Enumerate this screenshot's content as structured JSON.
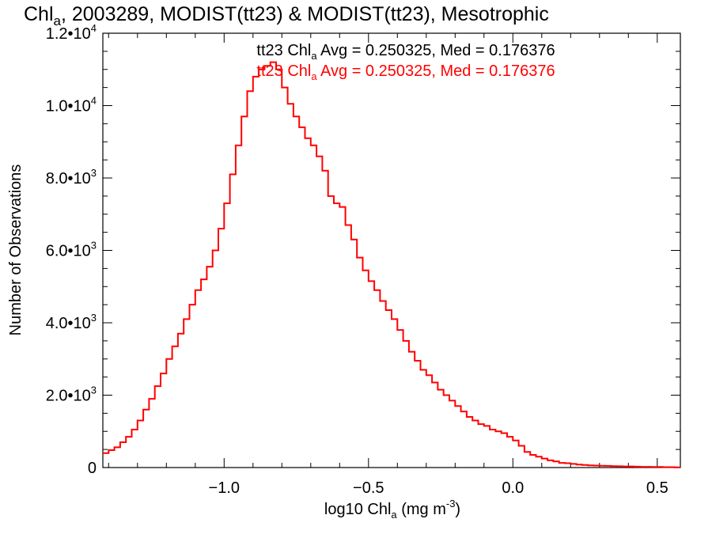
{
  "chart_data": {
    "type": "line",
    "title_parts": {
      "base": "Chl",
      "sub": "a",
      "rest": ", 2003289, MODIST(tt23) & MODIST(tt23), Mesotrophic"
    },
    "xlabel_parts": {
      "pre": "log10 Chl",
      "sub": "a",
      "mid": " (mg m",
      "sup": "-3",
      "post": ")"
    },
    "ylabel": "Number of Observations",
    "xlim": [
      -1.42,
      0.58
    ],
    "ylim": [
      0,
      12000
    ],
    "x_ticks": [
      {
        "value": -1.0,
        "label": "−1.0"
      },
      {
        "value": -0.5,
        "label": "−0.5"
      },
      {
        "value": 0.0,
        "label": "0.0"
      },
      {
        "value": 0.5,
        "label": "0.5"
      }
    ],
    "y_ticks": [
      {
        "value": 0,
        "label": "0",
        "exp": ""
      },
      {
        "value": 2000,
        "label": "2.0•10",
        "exp": "3"
      },
      {
        "value": 4000,
        "label": "4.0•10",
        "exp": "3"
      },
      {
        "value": 6000,
        "label": "6.0•10",
        "exp": "3"
      },
      {
        "value": 8000,
        "label": "8.0•10",
        "exp": "3"
      },
      {
        "value": 10000,
        "label": "1.0•10",
        "exp": "4"
      },
      {
        "value": 12000,
        "label": "1.2•10",
        "exp": "4"
      }
    ],
    "legend": [
      {
        "pre": "tt23 Chl",
        "sub": "a",
        "post": " Avg = 0.250325, Med = 0.176376",
        "color": "#000000"
      },
      {
        "pre": "tt23 Chl",
        "sub": "a",
        "post": " Avg = 0.250325, Med = 0.176376",
        "color": "#ff0000"
      }
    ],
    "series": [
      {
        "color": "#ff0000",
        "x": [
          -1.42,
          -1.4,
          -1.38,
          -1.36,
          -1.34,
          -1.32,
          -1.3,
          -1.28,
          -1.26,
          -1.24,
          -1.22,
          -1.2,
          -1.18,
          -1.16,
          -1.14,
          -1.12,
          -1.1,
          -1.08,
          -1.06,
          -1.04,
          -1.02,
          -1.0,
          -0.98,
          -0.96,
          -0.94,
          -0.92,
          -0.9,
          -0.88,
          -0.86,
          -0.84,
          -0.82,
          -0.8,
          -0.78,
          -0.76,
          -0.74,
          -0.72,
          -0.7,
          -0.68,
          -0.66,
          -0.64,
          -0.62,
          -0.6,
          -0.58,
          -0.56,
          -0.54,
          -0.52,
          -0.5,
          -0.48,
          -0.46,
          -0.44,
          -0.42,
          -0.4,
          -0.38,
          -0.36,
          -0.34,
          -0.32,
          -0.3,
          -0.28,
          -0.26,
          -0.24,
          -0.22,
          -0.2,
          -0.18,
          -0.16,
          -0.14,
          -0.12,
          -0.1,
          -0.08,
          -0.06,
          -0.04,
          -0.02,
          0.0,
          0.02,
          0.04,
          0.06,
          0.08,
          0.1,
          0.12,
          0.14,
          0.16,
          0.18,
          0.2,
          0.22,
          0.24,
          0.26,
          0.28,
          0.3,
          0.32,
          0.34,
          0.36,
          0.38,
          0.4,
          0.42,
          0.44,
          0.46,
          0.48,
          0.5,
          0.52,
          0.54,
          0.56,
          0.58
        ],
        "y": [
          400,
          480,
          560,
          700,
          850,
          1050,
          1300,
          1600,
          1900,
          2250,
          2600,
          3000,
          3350,
          3700,
          4100,
          4500,
          4900,
          5200,
          5550,
          6000,
          6600,
          7300,
          8100,
          8900,
          9700,
          10400,
          10800,
          11000,
          11100,
          11200,
          11000,
          10500,
          10050,
          9700,
          9400,
          9100,
          8900,
          8600,
          8200,
          7500,
          7300,
          7200,
          6700,
          6300,
          5800,
          5450,
          5150,
          4900,
          4600,
          4350,
          4100,
          3800,
          3500,
          3200,
          2950,
          2700,
          2550,
          2350,
          2150,
          2000,
          1850,
          1700,
          1550,
          1400,
          1300,
          1200,
          1150,
          1050,
          1000,
          950,
          850,
          750,
          600,
          430,
          350,
          300,
          250,
          200,
          170,
          130,
          120,
          100,
          80,
          70,
          60,
          55,
          50,
          45,
          40,
          35,
          30,
          30,
          25,
          20,
          20,
          15,
          15,
          10,
          10,
          5,
          5
        ]
      }
    ]
  }
}
